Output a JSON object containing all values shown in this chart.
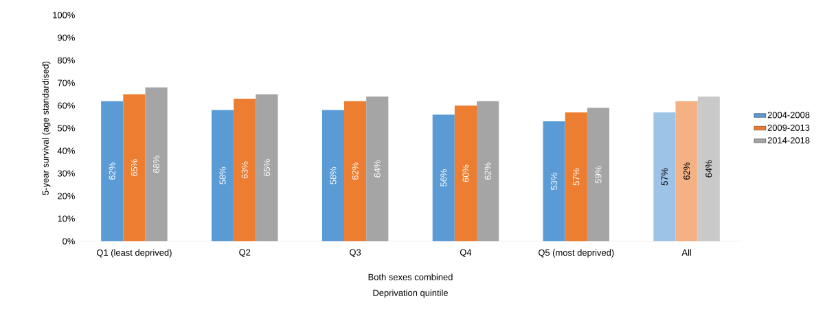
{
  "chart_data": {
    "type": "bar",
    "ylabel": "5-year survival (age standardised)",
    "xlabel": "Deprivation quintile",
    "annotations": [
      "Both sexes combined"
    ],
    "categories": [
      "Q1 (least deprived)",
      "Q2",
      "Q3",
      "Q4",
      "Q5 (most deprived)",
      "All"
    ],
    "series": [
      {
        "name": "2004-2008",
        "color": "#5b9bd5",
        "colors": [
          "#5b9bd5",
          "#5b9bd5",
          "#5b9bd5",
          "#5b9bd5",
          "#5b9bd5",
          "#9dc3e6"
        ],
        "values": [
          62,
          58,
          58,
          56,
          53,
          57
        ],
        "value_labels": [
          "62%",
          "58%",
          "58%",
          "56%",
          "53%",
          "57%"
        ]
      },
      {
        "name": "2009-2013",
        "color": "#ed7d31",
        "colors": [
          "#ed7d31",
          "#ed7d31",
          "#ed7d31",
          "#ed7d31",
          "#ed7d31",
          "#f4b183"
        ],
        "values": [
          65,
          63,
          62,
          60,
          57,
          62
        ],
        "value_labels": [
          "65%",
          "63%",
          "62%",
          "60%",
          "57%",
          "62%"
        ]
      },
      {
        "name": "2014-2018",
        "color": "#a5a5a5",
        "colors": [
          "#a5a5a5",
          "#a5a5a5",
          "#a5a5a5",
          "#a5a5a5",
          "#a5a5a5",
          "#c9c9c9"
        ],
        "values": [
          68,
          65,
          64,
          62,
          59,
          64
        ],
        "value_labels": [
          "68%",
          "65%",
          "64%",
          "62%",
          "59%",
          "64%"
        ]
      }
    ],
    "ylim": [
      0,
      100
    ],
    "yticks": [
      {
        "value": 0,
        "label": "0%"
      },
      {
        "value": 10,
        "label": "10%"
      },
      {
        "value": 20,
        "label": "20%"
      },
      {
        "value": 30,
        "label": "30%"
      },
      {
        "value": 40,
        "label": "40%"
      },
      {
        "value": 50,
        "label": "50%"
      },
      {
        "value": 60,
        "label": "60%"
      },
      {
        "value": 70,
        "label": "70%"
      },
      {
        "value": 80,
        "label": "80%"
      },
      {
        "value": 90,
        "label": "90%"
      },
      {
        "value": 100,
        "label": "100%"
      }
    ],
    "grid": false,
    "legend": "right"
  }
}
